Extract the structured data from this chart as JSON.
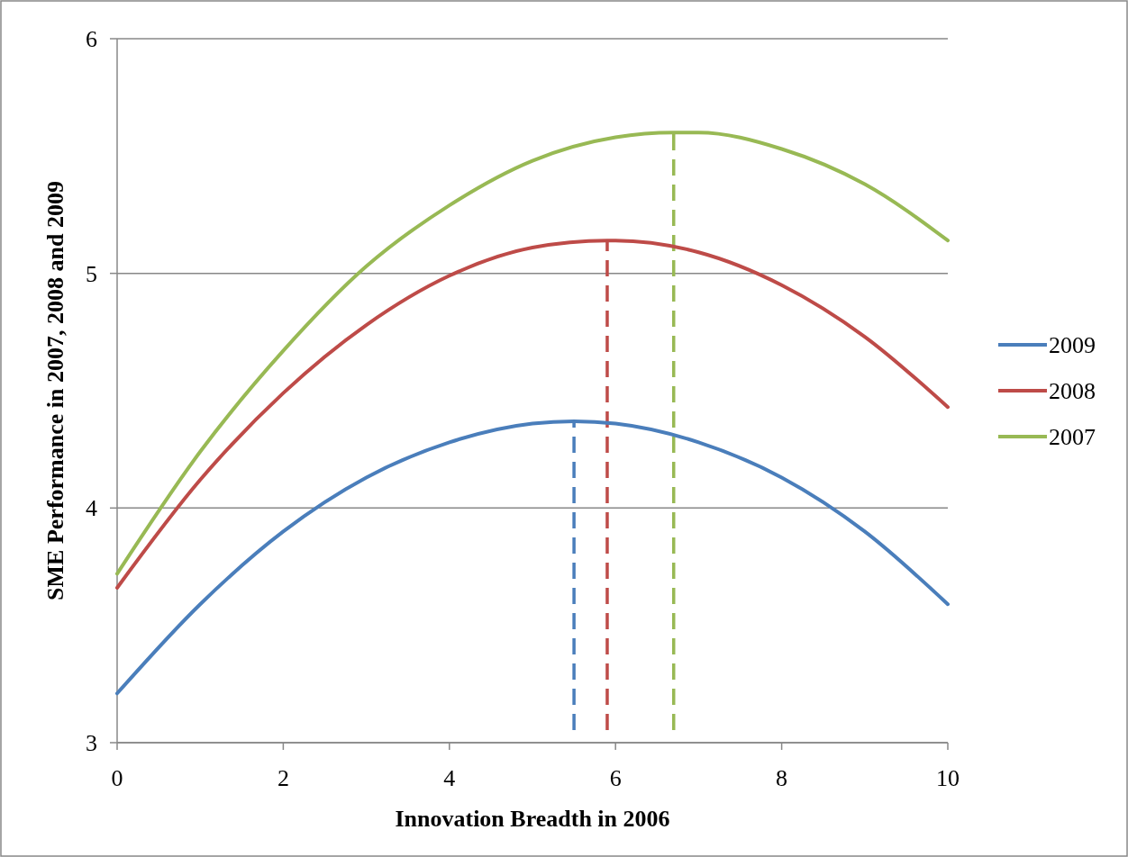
{
  "chart_data": {
    "type": "line",
    "xlabel": "Innovation Breadth in 2006",
    "ylabel": "SME Performance in 2007, 2008 and 2009",
    "xlim": [
      0,
      10
    ],
    "xticks": [
      0,
      2,
      4,
      6,
      8,
      10
    ],
    "ylim": [
      3,
      6
    ],
    "yticks": [
      3,
      4,
      5,
      6
    ],
    "grid": "y",
    "legend": "right",
    "marker": "none",
    "line_style": "solid",
    "series": [
      {
        "name": "2009",
        "color": "#4a7ebb",
        "x": [
          0,
          1,
          2,
          3,
          4,
          5,
          5.5,
          6,
          7,
          8,
          9,
          10
        ],
        "values": [
          3.21,
          3.59,
          3.9,
          4.13,
          4.28,
          4.36,
          4.37,
          4.36,
          4.28,
          4.13,
          3.9,
          3.59
        ]
      },
      {
        "name": "2008",
        "color": "#be4b48",
        "x": [
          0,
          1,
          2,
          3,
          4,
          5,
          5.9,
          6,
          7,
          8,
          9,
          10
        ],
        "values": [
          3.66,
          4.12,
          4.49,
          4.78,
          4.99,
          5.11,
          5.14,
          5.14,
          5.09,
          4.95,
          4.73,
          4.43
        ]
      },
      {
        "name": "2007",
        "color": "#98b954",
        "x": [
          0,
          1,
          2,
          3,
          4,
          5,
          6,
          6.7,
          7,
          8,
          9,
          10
        ],
        "values": [
          3.72,
          4.24,
          4.67,
          5.03,
          5.29,
          5.48,
          5.58,
          5.6,
          5.6,
          5.53,
          5.38,
          5.14
        ]
      }
    ],
    "ref_lines": [
      {
        "axis": "x",
        "value": 5.5,
        "color": "#4a7ebb",
        "line_style": "dashed"
      },
      {
        "axis": "x",
        "value": 5.9,
        "color": "#be4b48",
        "line_style": "dashed"
      },
      {
        "axis": "x",
        "value": 6.7,
        "color": "#98b954",
        "line_style": "dashed"
      }
    ]
  }
}
